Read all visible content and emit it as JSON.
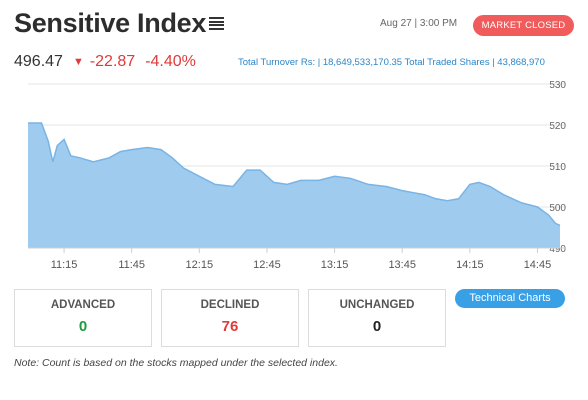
{
  "header": {
    "title": "Sensitive Index",
    "timestamp": "Aug 27 | 3:00 PM",
    "market_status": "MARKET CLOSED",
    "menu_icon": "hamburger-menu-icon"
  },
  "quote": {
    "price": "496.47",
    "change": "-22.87",
    "change_pct": "-4.40%",
    "direction_icon": "chevron-down-icon"
  },
  "turnover": {
    "text": "Total Turnover Rs: | 18,649,533,170.35  Total Traded Shares | 43,868,970"
  },
  "chart_data": {
    "type": "area",
    "xlabel": "",
    "ylabel": "",
    "x_ticks": [
      "11:15",
      "11:45",
      "12:15",
      "12:45",
      "13:15",
      "13:45",
      "14:15",
      "14:45"
    ],
    "y_ticks": [
      490,
      500,
      510,
      520,
      530
    ],
    "ylim": [
      490,
      530
    ],
    "grid": "horizontal",
    "fill_color": "#9ecbee",
    "line_color": "#78b4e6",
    "series": [
      {
        "x": [
          "10:59",
          "11:05",
          "11:08",
          "11:10",
          "11:12",
          "11:15",
          "11:18",
          "11:22",
          "11:28",
          "11:35",
          "11:40",
          "11:45",
          "11:52",
          "11:58",
          "12:03",
          "12:08",
          "12:15",
          "12:22",
          "12:30",
          "12:36",
          "12:42",
          "12:48",
          "12:54",
          "13:00",
          "13:08",
          "13:15",
          "13:22",
          "13:30",
          "13:38",
          "13:45",
          "13:50",
          "13:55",
          "14:00",
          "14:05",
          "14:10",
          "14:15",
          "14:19",
          "14:24",
          "14:30",
          "14:38",
          "14:45",
          "14:50",
          "14:53",
          "14:55"
        ],
        "y": [
          520.5,
          520.5,
          516,
          511,
          515,
          516.5,
          512.5,
          512,
          511,
          512,
          513.5,
          514,
          514.5,
          514,
          512,
          509.5,
          507.5,
          505.5,
          505,
          509,
          509,
          506,
          505.5,
          506.5,
          506.5,
          507.5,
          507,
          505.5,
          505,
          504,
          503.5,
          503,
          502,
          501.5,
          502,
          505.5,
          506,
          505,
          503,
          501,
          500,
          498,
          496,
          495.5
        ]
      }
    ]
  },
  "stats": {
    "advanced": {
      "label": "ADVANCED",
      "value": "0",
      "color": "#1f9d3b"
    },
    "declined": {
      "label": "DECLINED",
      "value": "76",
      "color": "#e03a3a"
    },
    "unchanged": {
      "label": "UNCHANGED",
      "value": "0",
      "color": "#222222"
    }
  },
  "buttons": {
    "technical_charts": "Technical Charts"
  },
  "note": "Note: Count is based on the stocks mapped under the selected index."
}
